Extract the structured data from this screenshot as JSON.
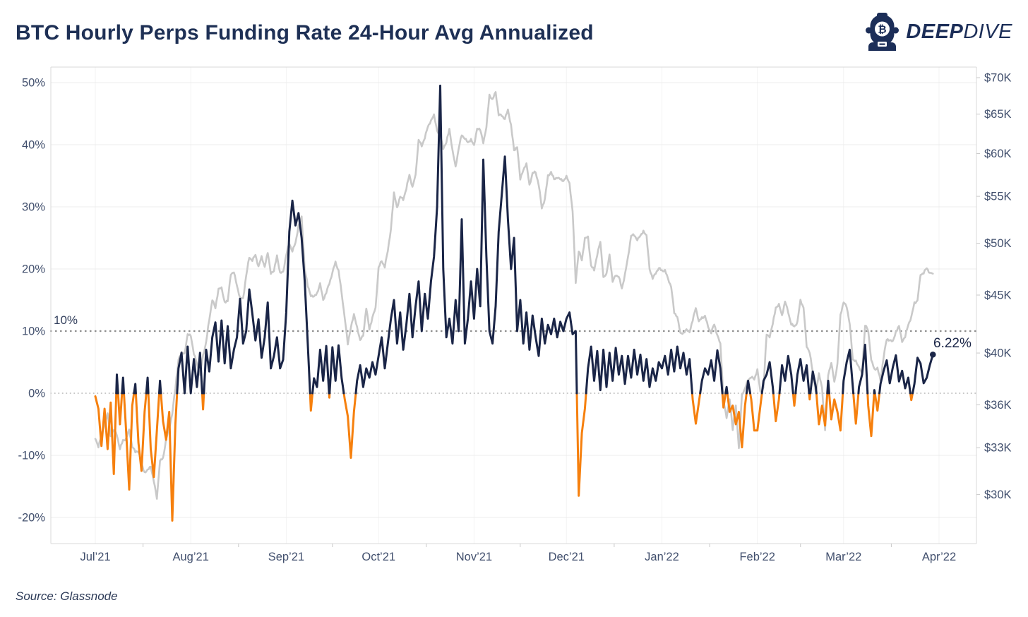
{
  "header": {
    "title": "BTC Hourly Perps Funding Rate 24-Hour Avg Annualized",
    "logo": {
      "icon": "diver-helmet",
      "brand_bold": "DEEP",
      "brand_light": "DIVE"
    }
  },
  "footer": {
    "source": "Source: Glassnode"
  },
  "colors": {
    "navy_accent": "#1e3055",
    "funding_positive": "#1a2547",
    "funding_negative": "#f6800e",
    "price_gray": "#c9c9c9",
    "grid": "#ececec",
    "axis_border": "#d8d8d8",
    "tick_label": "#414f6d"
  },
  "chart_data": {
    "type": "line",
    "title": "BTC Hourly Perps Funding Rate 24-Hour Avg Annualized",
    "x": {
      "start_date": "2021-07-01",
      "step_days": 1,
      "tick_labels": [
        "Jul’21",
        "Aug’21",
        "Sep’21",
        "Oct’21",
        "Nov’21",
        "Dec’21",
        "Jan’22",
        "Feb’22",
        "Mar’22",
        "Apr’22"
      ],
      "tick_start_day_offsets": [
        0,
        31,
        62,
        92,
        123,
        153,
        184,
        215,
        243,
        274
      ]
    },
    "left_axis": {
      "unit": "%",
      "range": [
        -25,
        52
      ],
      "ticks": [
        {
          "v": 50,
          "label": "50%"
        },
        {
          "v": 40,
          "label": "40%"
        },
        {
          "v": 30,
          "label": "30%"
        },
        {
          "v": 20,
          "label": "20%"
        },
        {
          "v": 10,
          "label": "10%"
        },
        {
          "v": 0,
          "label": "0%"
        },
        {
          "v": -10,
          "label": "-10%"
        },
        {
          "v": -20,
          "label": "-20%"
        }
      ],
      "ref_lines": [
        {
          "v": 10,
          "style": "dotted-bold"
        },
        {
          "v": 0,
          "style": "dotted-fine"
        }
      ]
    },
    "right_axis": {
      "unit": "USD",
      "scale": "log",
      "ticks": [
        {
          "v": 70,
          "label": "$70K"
        },
        {
          "v": 65,
          "label": "$65K"
        },
        {
          "v": 60,
          "label": "$60K"
        },
        {
          "v": 55,
          "label": "$55K"
        },
        {
          "v": 50,
          "label": "$50K"
        },
        {
          "v": 45,
          "label": "$45K"
        },
        {
          "v": 40,
          "label": "$40K"
        },
        {
          "v": 36,
          "label": "$36K"
        },
        {
          "v": 33,
          "label": "$33K"
        },
        {
          "v": 30,
          "label": "$30K"
        }
      ]
    },
    "series": [
      {
        "name": "BTC price (right axis, log scale)",
        "axis": "right",
        "color": "#c9c9c9",
        "values_usd_thousands": [
          33.6,
          33.1,
          33.8,
          34.7,
          35.3,
          33.8,
          34.2,
          33.9,
          32.9,
          33.5,
          33.6,
          34.2,
          33.1,
          32.7,
          32.8,
          31.9,
          31.4,
          31.5,
          31.8,
          30.8,
          29.8,
          32.1,
          32.3,
          33.6,
          34.3,
          35.4,
          37.2,
          39.5,
          40.0,
          40.0,
          41.5,
          41.5,
          39.9,
          39.2,
          38.2,
          39.8,
          40.9,
          42.8,
          44.6,
          43.8,
          45.6,
          45.6,
          44.4,
          44.4,
          47.0,
          47.1,
          45.9,
          44.7,
          44.7,
          46.8,
          48.6,
          48.3,
          48.8,
          47.7,
          48.6,
          47.7,
          49.0,
          47.1,
          47.2,
          48.8,
          47.0,
          47.2,
          48.8,
          50.0,
          49.2,
          50.0,
          51.8,
          52.7,
          47.5,
          45.8,
          45.0,
          44.8,
          45.2,
          46.0,
          44.6,
          45.2,
          46.1,
          47.1,
          48.1,
          47.3,
          45.1,
          43.0,
          40.7,
          42.2,
          43.2,
          42.2,
          41.0,
          41.5,
          43.8,
          42.0,
          43.0,
          43.8,
          47.6,
          48.2,
          47.7,
          49.2,
          51.5,
          55.3,
          53.8,
          54.9,
          54.7,
          55.8,
          57.5,
          56.0,
          57.4,
          61.7,
          60.9,
          62.0,
          63.3,
          64.2,
          64.8,
          62.9,
          62.2,
          60.7,
          61.3,
          63.1,
          60.3,
          58.4,
          60.6,
          62.3,
          61.9,
          61.3,
          61.8,
          60.9,
          63.2,
          62.9,
          61.4,
          63.2,
          67.6,
          66.9,
          68.0,
          64.9,
          64.8,
          64.4,
          65.5,
          63.6,
          60.3,
          60.9,
          56.9,
          58.1,
          58.7,
          56.3,
          57.6,
          57.8,
          56.3,
          53.7,
          54.7,
          57.3,
          57.8,
          56.9,
          57.2,
          56.9,
          56.8,
          57.2,
          56.5,
          53.3,
          46.2,
          49.2,
          48.3,
          50.5,
          50.6,
          47.8,
          47.3,
          48.9,
          50.1,
          46.7,
          46.9,
          48.9,
          46.2,
          46.9,
          46.7,
          45.6,
          46.9,
          48.6,
          50.8,
          50.8,
          50.4,
          50.7,
          51.3,
          50.7,
          47.5,
          46.5,
          47.1,
          47.5,
          47.3,
          47.3,
          46.5,
          45.8,
          43.4,
          43.1,
          41.6,
          41.7,
          41.9,
          41.8,
          42.7,
          43.9,
          42.6,
          43.0,
          43.1,
          42.2,
          41.7,
          42.4,
          41.5,
          40.7,
          36.4,
          35.0,
          36.5,
          34.2,
          36.0,
          32.9,
          36.8,
          37.2,
          37.9,
          38.1,
          37.9,
          38.7,
          36.9,
          37.3,
          41.5,
          41.4,
          42.4,
          43.9,
          44.1,
          43.2,
          44.4,
          43.5,
          42.4,
          42.2,
          42.6,
          44.5,
          43.9,
          40.5,
          40.1,
          38.4,
          37.0,
          38.3,
          37.3,
          34.2,
          38.3,
          39.2,
          37.7,
          39.1,
          43.2,
          44.4,
          43.9,
          42.5,
          39.4,
          39.4,
          38.8,
          38.4,
          42.3,
          41.9,
          39.4,
          38.7,
          38.8,
          37.8,
          39.7,
          41.1,
          41.1,
          40.9,
          41.8,
          42.2,
          41.0,
          41.3,
          42.4,
          43.0,
          44.3,
          44.5,
          46.9,
          47.1,
          47.5,
          47.1,
          47.0
        ]
      },
      {
        "name": "Funding rate 24-hour avg annualized (left axis)",
        "axis": "left",
        "color_positive": "#1a2547",
        "color_negative": "#f6800e",
        "values_pct": [
          -0.5,
          -2.5,
          -8.5,
          -2.5,
          -9,
          -1.5,
          -13,
          3,
          -5,
          2.5,
          -6,
          -15.5,
          -2,
          1.5,
          -8,
          -12.5,
          -3,
          2.5,
          -9,
          -13.5,
          -6,
          2,
          -4.5,
          -7.5,
          -3,
          -20.5,
          -5,
          4,
          6.5,
          0,
          7.5,
          0,
          5.5,
          1,
          6.5,
          -2.6,
          7,
          3.5,
          9,
          11.4,
          5.1,
          11.7,
          4.8,
          10.8,
          4,
          7,
          9,
          15.2,
          8,
          10,
          16.7,
          12.8,
          8.5,
          11.9,
          5.7,
          9,
          14.6,
          4,
          6,
          9,
          4,
          5.4,
          13,
          26,
          31,
          27,
          29,
          25,
          18,
          8,
          -2.8,
          2.4,
          1,
          7,
          2,
          7.6,
          -0.7,
          7.4,
          2,
          7.7,
          2.4,
          -1,
          -3.7,
          -10.4,
          -3,
          2,
          4.5,
          1,
          4,
          2.5,
          5,
          3,
          6,
          9,
          4,
          8,
          12,
          15,
          8,
          13,
          7,
          11,
          16,
          9,
          14,
          18,
          10,
          16,
          12,
          18,
          22,
          30,
          49.5,
          20,
          9,
          12,
          8,
          15,
          10,
          28,
          8,
          12,
          18,
          12,
          20,
          14,
          37.6,
          22,
          10,
          8,
          14,
          26,
          32,
          38.1,
          28,
          20,
          25,
          10,
          15,
          8,
          13,
          7,
          12.5,
          9,
          6,
          12,
          8,
          11,
          9.5,
          12,
          9,
          11.5,
          10,
          12,
          13,
          9.5,
          10,
          -16.5,
          -6.4,
          -2.5,
          4,
          7.5,
          2,
          6.8,
          0.5,
          7,
          1,
          6.5,
          2,
          7.3,
          3,
          6,
          1.5,
          6,
          2.5,
          7,
          3,
          6.2,
          2,
          5.5,
          1,
          4,
          2,
          5,
          4,
          6,
          3,
          7,
          3.5,
          7.5,
          4,
          6.5,
          3,
          5.5,
          -1,
          -4.9,
          -1.5,
          2,
          4,
          3,
          5.3,
          2,
          6.9,
          4,
          -2.3,
          1,
          -3,
          -2,
          -5,
          -3,
          -8.7,
          -2,
          2,
          -1,
          -6,
          -6,
          -2,
          2,
          3,
          5,
          1,
          -4.5,
          -1,
          4.5,
          2,
          6,
          3,
          -2,
          3,
          5.5,
          2,
          4.5,
          -1,
          3.5,
          1,
          -5,
          -2,
          -5.2,
          2,
          -4.2,
          -1,
          -3,
          -6,
          2,
          5,
          7,
          1,
          -4.9,
          1,
          3,
          7.8,
          -2,
          -6.9,
          0.5,
          -2.8,
          1.5,
          3.6,
          5.3,
          1.6,
          4.2,
          6.1,
          1.9,
          3.6,
          0.8,
          2.5,
          -1.1,
          1.5,
          5.7,
          4.8,
          1.6,
          2.5,
          4.5,
          6.22
        ]
      }
    ],
    "annotations": {
      "ref_line_label": "10%",
      "last_value_label": "6.22%",
      "last_value_pct": 6.22
    },
    "legend": "none",
    "grid": "horizontal-major"
  }
}
